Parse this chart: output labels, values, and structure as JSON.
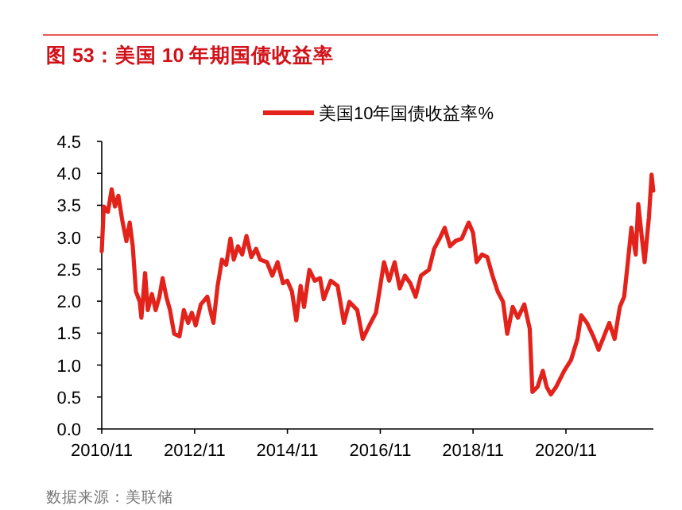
{
  "chart_data": {
    "type": "line",
    "title": "图 53：美国 10 年期国债收益率",
    "x": [
      "2010-11-01",
      "2010-11-17",
      "2010-12-20",
      "2011-01-18",
      "2011-02-13",
      "2011-03-12",
      "2011-04-11",
      "2011-05-14",
      "2011-06-09",
      "2011-07-03",
      "2011-07-28",
      "2011-08-27",
      "2011-09-09",
      "2011-10-08",
      "2011-10-29",
      "2011-12-01",
      "2011-12-30",
      "2012-01-29",
      "2012-02-23",
      "2012-03-23",
      "2012-04-21",
      "2012-05-24",
      "2012-07-05",
      "2012-08-08",
      "2012-09-11",
      "2012-10-10",
      "2012-11-09",
      "2012-12-20",
      "2013-02-09",
      "2013-03-04",
      "2013-03-29",
      "2013-05-01",
      "2013-06-04",
      "2013-07-07",
      "2013-08-10",
      "2013-09-05",
      "2013-10-08",
      "2013-11-10",
      "2013-12-14",
      "2014-01-21",
      "2014-02-28",
      "2014-04-01",
      "2014-05-24",
      "2014-07-05",
      "2014-08-16",
      "2014-09-27",
      "2014-10-31",
      "2014-12-07",
      "2015-01-10",
      "2015-02-13",
      "2015-03-12",
      "2015-04-23",
      "2015-06-04",
      "2015-07-16",
      "2015-08-14",
      "2015-10-08",
      "2015-12-01",
      "2016-01-20",
      "2016-03-03",
      "2016-05-04",
      "2016-06-16",
      "2016-08-17",
      "2016-09-28",
      "2016-11-01",
      "2016-11-30",
      "2017-01-10",
      "2017-02-22",
      "2017-04-03",
      "2017-05-14",
      "2017-06-25",
      "2017-08-06",
      "2017-09-17",
      "2017-11-19",
      "2017-12-30",
      "2018-02-11",
      "2018-03-23",
      "2018-05-04",
      "2018-06-15",
      "2018-08-04",
      "2018-09-28",
      "2018-11-01",
      "2018-11-29",
      "2019-01-10",
      "2019-02-21",
      "2019-04-03",
      "2019-05-14",
      "2019-06-25",
      "2019-07-28",
      "2019-09-09",
      "2019-10-20",
      "2019-12-09",
      "2020-01-21",
      "2020-02-11",
      "2020-03-23",
      "2020-05-03",
      "2020-06-02",
      "2020-07-05",
      "2020-08-16",
      "2020-10-18",
      "2020-12-11",
      "2021-01-31",
      "2021-03-01",
      "2021-04-15",
      "2021-06-04",
      "2021-07-16",
      "2021-08-27",
      "2021-10-08",
      "2021-11-19",
      "2021-12-30",
      "2022-02-02",
      "2022-03-01",
      "2022-03-31",
      "2022-05-04",
      "2022-05-24",
      "2022-06-22",
      "2022-07-13",
      "2022-08-16",
      "2022-09-06",
      "2022-09-19"
    ],
    "series": [
      {
        "name": "美国10年国债收益率%",
        "color": "#e3231b",
        "values": [
          2.78,
          3.48,
          3.4,
          3.75,
          3.48,
          3.65,
          3.27,
          2.94,
          3.23,
          2.86,
          2.15,
          1.99,
          1.74,
          2.44,
          1.86,
          2.11,
          1.86,
          2.07,
          2.36,
          2.07,
          1.86,
          1.49,
          1.45,
          1.86,
          1.66,
          1.82,
          1.62,
          1.95,
          2.07,
          1.86,
          1.66,
          2.24,
          2.65,
          2.57,
          2.98,
          2.65,
          2.86,
          2.73,
          3.02,
          2.69,
          2.82,
          2.65,
          2.61,
          2.4,
          2.61,
          2.28,
          2.32,
          2.15,
          1.7,
          2.24,
          1.91,
          2.49,
          2.32,
          2.36,
          2.03,
          2.32,
          2.24,
          1.66,
          1.99,
          1.86,
          1.41,
          1.66,
          1.82,
          2.24,
          2.61,
          2.32,
          2.61,
          2.2,
          2.4,
          2.28,
          2.07,
          2.4,
          2.49,
          2.82,
          2.98,
          3.15,
          2.86,
          2.94,
          2.98,
          3.23,
          3.07,
          2.61,
          2.73,
          2.69,
          2.4,
          2.15,
          1.99,
          1.49,
          1.91,
          1.74,
          1.95,
          1.57,
          0.58,
          0.66,
          0.91,
          0.66,
          0.54,
          0.66,
          0.91,
          1.08,
          1.41,
          1.78,
          1.66,
          1.45,
          1.24,
          1.45,
          1.66,
          1.41,
          1.91,
          2.07,
          2.57,
          3.15,
          2.73,
          3.52,
          2.98,
          2.61,
          3.31,
          3.98,
          3.73
        ]
      }
    ],
    "xlim": [
      "2010-11-01",
      "2022-09-20"
    ],
    "ylim": [
      0,
      4.5
    ],
    "xticks": [
      {
        "value": "2010-11",
        "label": "2010/11"
      },
      {
        "value": "2012-11",
        "label": "2012/11"
      },
      {
        "value": "2014-11",
        "label": "2014/11"
      },
      {
        "value": "2016-11",
        "label": "2016/11"
      },
      {
        "value": "2018-11",
        "label": "2018/11"
      },
      {
        "value": "2020-11",
        "label": "2020/11"
      }
    ],
    "yticks": [
      {
        "value": 0,
        "label": "0.0"
      },
      {
        "value": 0.5,
        "label": "0.5"
      },
      {
        "value": 1,
        "label": "1.0"
      },
      {
        "value": 1.5,
        "label": "1.5"
      },
      {
        "value": 2,
        "label": "2.0"
      },
      {
        "value": 2.5,
        "label": "2.5"
      },
      {
        "value": 3,
        "label": "3.0"
      },
      {
        "value": 3.5,
        "label": "3.5"
      },
      {
        "value": 4,
        "label": "4.0"
      },
      {
        "value": 4.5,
        "label": "4.5"
      }
    ],
    "legend": "top",
    "annotations": [
      "数据来源：美联储"
    ]
  }
}
